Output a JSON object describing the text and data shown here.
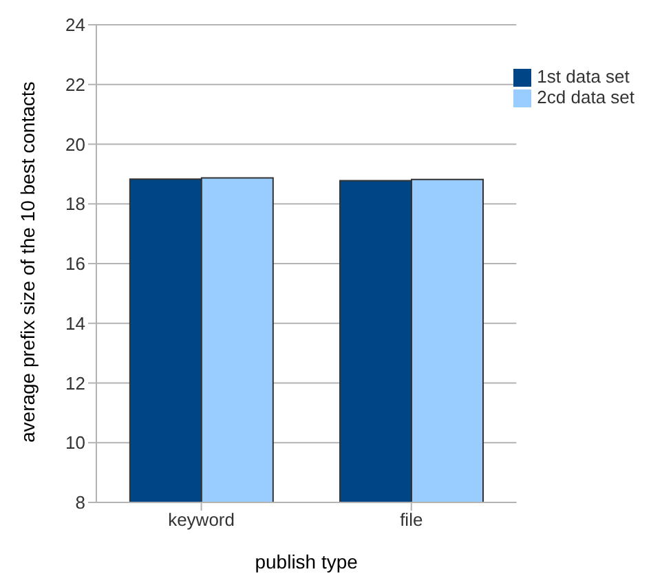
{
  "chart_data": {
    "type": "bar",
    "xlabel": "publish type",
    "ylabel": "average prefix size of the 10 best contacts",
    "categories": [
      "keyword",
      "file"
    ],
    "series": [
      {
        "name": "1st data set",
        "color": "#004586",
        "values": [
          18.83,
          18.78
        ]
      },
      {
        "name": "2cd data set",
        "color": "#99ccff",
        "values": [
          18.87,
          18.82
        ]
      }
    ],
    "ylim": [
      8,
      24
    ],
    "yticks": [
      8,
      10,
      12,
      14,
      16,
      18,
      20,
      22,
      24
    ],
    "grid": "y",
    "legend": "top right"
  }
}
